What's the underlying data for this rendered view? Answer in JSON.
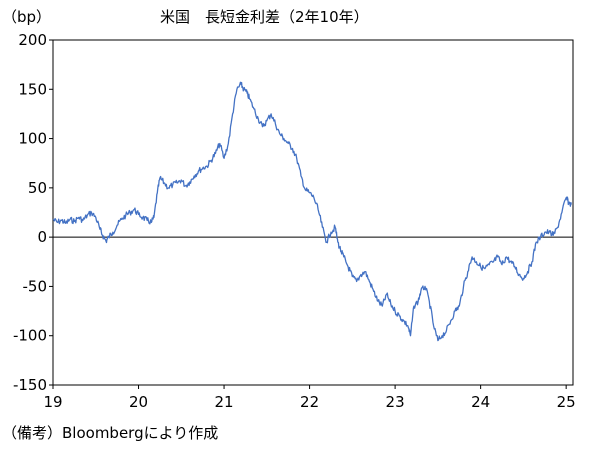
{
  "chart_data": {
    "type": "line",
    "title": "米国　長短金利差（2年10年）",
    "ylabel": "（bp）",
    "xlabel": "",
    "source_note": "（備考）Bloombergにより作成",
    "ylim": [
      -150,
      200
    ],
    "xlim": [
      2019.0,
      2025.08
    ],
    "yticks": [
      200,
      150,
      100,
      50,
      0,
      -50,
      -100,
      -150
    ],
    "xticks": [
      "19",
      "20",
      "21",
      "22",
      "23",
      "24",
      "25"
    ],
    "grid": false,
    "legend": "none",
    "series": [
      {
        "color": "#4472C4",
        "x": [
          2019.0,
          2019.05,
          2019.1,
          2019.15,
          2019.2,
          2019.25,
          2019.3,
          2019.35,
          2019.4,
          2019.45,
          2019.5,
          2019.55,
          2019.58,
          2019.62,
          2019.65,
          2019.7,
          2019.75,
          2019.8,
          2019.85,
          2019.9,
          2019.95,
          2020.0,
          2020.05,
          2020.1,
          2020.15,
          2020.18,
          2020.22,
          2020.25,
          2020.3,
          2020.35,
          2020.4,
          2020.45,
          2020.5,
          2020.55,
          2020.6,
          2020.65,
          2020.7,
          2020.75,
          2020.8,
          2020.85,
          2020.9,
          2020.95,
          2021.0,
          2021.05,
          2021.1,
          2021.15,
          2021.2,
          2021.23,
          2021.27,
          2021.3,
          2021.35,
          2021.4,
          2021.45,
          2021.5,
          2021.55,
          2021.6,
          2021.65,
          2021.7,
          2021.75,
          2021.8,
          2021.85,
          2021.9,
          2021.95,
          2022.0,
          2022.05,
          2022.1,
          2022.15,
          2022.2,
          2022.25,
          2022.3,
          2022.33,
          2022.37,
          2022.4,
          2022.45,
          2022.5,
          2022.55,
          2022.6,
          2022.65,
          2022.7,
          2022.75,
          2022.8,
          2022.85,
          2022.9,
          2022.95,
          2023.0,
          2023.05,
          2023.1,
          2023.15,
          2023.18,
          2023.22,
          2023.27,
          2023.3,
          2023.35,
          2023.4,
          2023.45,
          2023.5,
          2023.55,
          2023.6,
          2023.65,
          2023.7,
          2023.75,
          2023.8,
          2023.85,
          2023.9,
          2023.95,
          2024.0,
          2024.05,
          2024.1,
          2024.15,
          2024.2,
          2024.25,
          2024.3,
          2024.35,
          2024.4,
          2024.45,
          2024.5,
          2024.55,
          2024.6,
          2024.65,
          2024.7,
          2024.75,
          2024.8,
          2024.85,
          2024.9,
          2024.95,
          2025.0,
          2025.03,
          2025.06
        ],
        "y": [
          18,
          15,
          17,
          14,
          18,
          16,
          20,
          17,
          22,
          25,
          20,
          8,
          2,
          -4,
          0,
          5,
          12,
          18,
          22,
          25,
          28,
          23,
          20,
          17,
          15,
          20,
          45,
          60,
          55,
          50,
          53,
          55,
          58,
          52,
          56,
          62,
          67,
          70,
          72,
          78,
          85,
          95,
          80,
          95,
          125,
          150,
          155,
          150,
          146,
          140,
          130,
          120,
          112,
          118,
          125,
          115,
          105,
          100,
          95,
          90,
          80,
          62,
          48,
          45,
          40,
          28,
          10,
          -5,
          5,
          10,
          -5,
          -15,
          -20,
          -30,
          -40,
          -45,
          -38,
          -35,
          -45,
          -55,
          -65,
          -70,
          -58,
          -68,
          -75,
          -80,
          -85,
          -90,
          -100,
          -70,
          -65,
          -55,
          -50,
          -65,
          -90,
          -105,
          -100,
          -95,
          -85,
          -75,
          -70,
          -50,
          -35,
          -20,
          -25,
          -30,
          -32,
          -28,
          -25,
          -20,
          -28,
          -20,
          -25,
          -30,
          -38,
          -42,
          -35,
          -25,
          -5,
          0,
          5,
          5,
          2,
          10,
          25,
          40,
          35,
          33
        ]
      }
    ]
  }
}
